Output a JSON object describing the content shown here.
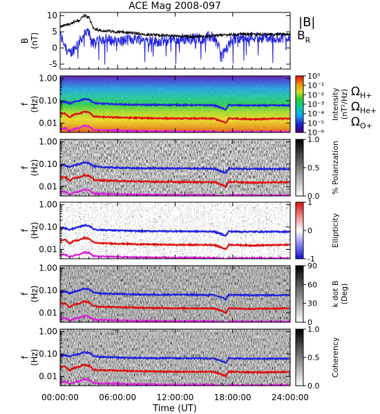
{
  "title": "ACE Mag 2008-097",
  "x_axis": {
    "ticks": [
      "00:00:00",
      "06:00:00",
      "12:00:00",
      "18:00:00",
      "24:00:00"
    ],
    "label": "Time (UT)"
  },
  "legend_B": {
    "total": "|B|",
    "radial": "B",
    "radial_sub": "R"
  },
  "legend_freqs": [
    {
      "symbol": "Ω",
      "sub": "H+",
      "color": "#2222dd"
    },
    {
      "symbol": "Ω",
      "sub": "He+",
      "color": "#dd1111"
    },
    {
      "symbol": "Ω",
      "sub": "O+",
      "color": "#dd22dd"
    }
  ],
  "panel_labels": {
    "b": {
      "line1": "B",
      "line2": "(nT)"
    },
    "f": {
      "line1": "f",
      "line2": "(Hz)"
    }
  },
  "colorbar_labels": {
    "intensity_l1": "Intensity",
    "intensity_l2": "(nT²/Hz)",
    "polarization": "% Polarization",
    "ellipticity": "Ellipticity",
    "kdotb_l1": "k dot B",
    "kdotb_l2": "(Deg)",
    "coherency": "Coherency"
  },
  "y_ticks": {
    "b": [
      "10",
      "5",
      "0",
      "-5"
    ],
    "f": [
      "1.00",
      "0.10",
      "0.01"
    ]
  },
  "colorbar_ticks": {
    "intensity": [
      "10⁰",
      "10⁻¹",
      "10⁻²",
      "10⁻³",
      "10⁻⁴",
      "10⁻⁵",
      "10⁻⁶"
    ],
    "polarization": [
      "1.0",
      "0.5",
      "0.0"
    ],
    "ellipticity": [
      "1",
      "0",
      "-1"
    ],
    "kdotb": [
      "90",
      "60",
      "30",
      "0"
    ],
    "coherency": [
      "1.0",
      "0.5",
      "0.0"
    ]
  },
  "colors": {
    "absB": "#000000",
    "BR": "#2222dd",
    "H": "#2222dd",
    "He": "#dd1111",
    "O": "#dd22dd"
  },
  "chart_data": [
    {
      "type": "line",
      "title": "ACE Mag 2008-097",
      "xlabel": "Time (UT)",
      "ylabel": "B (nT)",
      "xlim": [
        0,
        24
      ],
      "ylim": [
        -6.5,
        11
      ],
      "x": [
        0,
        1,
        2,
        2.5,
        3,
        3.5,
        4,
        6,
        8,
        10,
        12,
        14,
        16,
        17,
        18,
        20,
        22,
        24
      ],
      "series": [
        {
          "name": "|B|",
          "values": [
            6.5,
            7.5,
            8.5,
            10,
            9.5,
            6,
            5.5,
            5,
            4.5,
            4,
            3.8,
            3.5,
            3.8,
            4,
            4.2,
            4.3,
            4.2,
            4.3
          ]
        },
        {
          "name": "B_R",
          "values": [
            4,
            -2,
            2,
            4,
            5,
            1,
            3,
            2,
            3,
            2,
            2.5,
            3,
            3.5,
            -2,
            3,
            3.5,
            3,
            3.5
          ]
        }
      ]
    },
    {
      "type": "heatmap",
      "ylabel": "f (Hz)",
      "yscale": "log",
      "ylim": [
        0.0038,
        1.3
      ],
      "xlim": [
        0,
        24
      ],
      "colorbar_label": "Intensity (nT²/Hz)",
      "colorbar_range": [
        1e-06,
        1
      ],
      "x": [
        0,
        0.5,
        1,
        1.5,
        2,
        2.5,
        3,
        3.5,
        4,
        6,
        8,
        12,
        16,
        17.3,
        17.6,
        18,
        20,
        24
      ],
      "series": [
        {
          "name": "Ω_H+",
          "values": [
            0.085,
            0.09,
            0.075,
            0.09,
            0.1,
            0.12,
            0.115,
            0.08,
            0.075,
            0.07,
            0.066,
            0.065,
            0.063,
            0.04,
            0.065,
            0.063,
            0.062,
            0.062
          ]
        },
        {
          "name": "Ω_He+",
          "values": [
            0.025,
            0.027,
            0.018,
            0.025,
            0.026,
            0.033,
            0.03,
            0.02,
            0.019,
            0.018,
            0.017,
            0.016,
            0.016,
            0.01,
            0.016,
            0.016,
            0.015,
            0.016
          ]
        },
        {
          "name": "Ω_O+",
          "values": [
            0.0055,
            0.006,
            0.0045,
            0.0055,
            0.006,
            0.0075,
            0.007,
            0.005,
            0.0048,
            0.0046,
            0.0044,
            0.0042,
            0.0042,
            0.0035,
            0.0042,
            0.0041,
            0.004,
            0.004
          ]
        }
      ]
    },
    {
      "type": "heatmap",
      "ylabel": "f (Hz)",
      "yscale": "log",
      "colorbar_label": "% Polarization",
      "colorbar_range": [
        0,
        1
      ]
    },
    {
      "type": "heatmap",
      "ylabel": "f (Hz)",
      "yscale": "log",
      "colorbar_label": "Ellipticity",
      "colorbar_range": [
        -1,
        1
      ]
    },
    {
      "type": "heatmap",
      "ylabel": "f (Hz)",
      "yscale": "log",
      "colorbar_label": "k dot B (Deg)",
      "colorbar_range": [
        0,
        90
      ]
    },
    {
      "type": "heatmap",
      "ylabel": "f (Hz)",
      "yscale": "log",
      "colorbar_label": "Coherency",
      "colorbar_range": [
        0,
        1
      ]
    }
  ]
}
